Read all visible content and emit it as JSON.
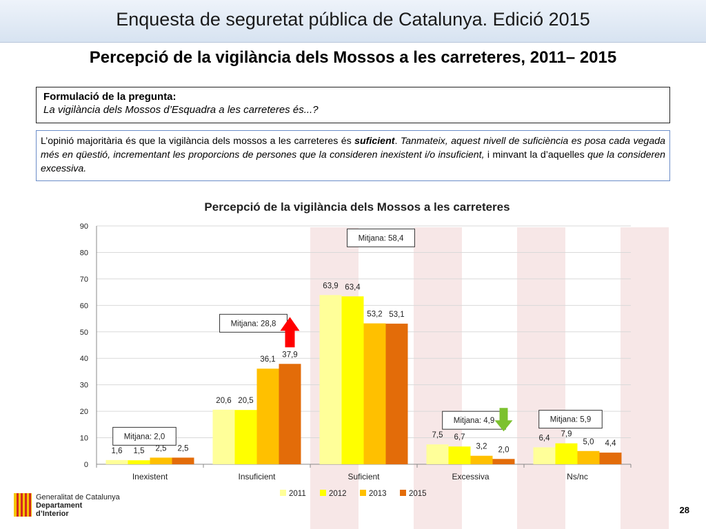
{
  "header": {
    "banner_title": "Enquesta de seguretat pública de Catalunya. Edició 2015",
    "page_title": "Percepció de la vigilància dels Mossos a les carreteres, 2011– 2015"
  },
  "question": {
    "heading": "Formulació de la pregunta:",
    "text": "La vigilància dels Mossos d’Esquadra a les carreteres és...?"
  },
  "summary": {
    "part1": "L’opinió majoritària és que la vigilància dels mossos a les carreteres és ",
    "part2_bold_italic": "suficient",
    "part3": ". ",
    "part4_italic": "Tanmateix, aquest nivell de suficiència es posa cada vegada més en qüestió, incrementant les proporcions de persones que la consideren inexistent i/o insuficient,",
    "part5": " i minvant la d’aquelles ",
    "part6_italic": "que la consideren excessiva."
  },
  "chart_data": {
    "type": "bar",
    "title": "Percepció de la vigilància dels Mossos a les carreteres",
    "categories": [
      "Inexistent",
      "Insuficient",
      "Suficient",
      "Excessiva",
      "Ns/nc"
    ],
    "series": [
      {
        "name": "2011",
        "color": "#ffff99",
        "values": [
          1.6,
          20.6,
          63.9,
          7.5,
          6.4
        ],
        "labels": [
          "1,6",
          "20,6",
          "63,9",
          "7,5",
          "6,4"
        ]
      },
      {
        "name": "2012",
        "color": "#ffff00",
        "values": [
          1.5,
          20.5,
          63.4,
          6.7,
          7.9
        ],
        "labels": [
          "1,5",
          "20,5",
          "63,4",
          "6,7",
          "7,9"
        ]
      },
      {
        "name": "2013",
        "color": "#ffc000",
        "values": [
          2.5,
          36.1,
          53.2,
          3.2,
          5.0
        ],
        "labels": [
          "2,5",
          "36,1",
          "53,2",
          "3,2",
          "5,0"
        ]
      },
      {
        "name": "2015",
        "color": "#e36c09",
        "values": [
          2.5,
          37.9,
          53.1,
          2.0,
          4.4
        ],
        "labels": [
          "2,5",
          "37,9",
          "53,1",
          "2,0",
          "4,4"
        ]
      }
    ],
    "ylim": [
      0,
      90
    ],
    "yticks": [
      0,
      10,
      20,
      30,
      40,
      50,
      60,
      70,
      80,
      90
    ],
    "grid": true,
    "legend_position": "bottom",
    "annotations": [
      {
        "text": "Mitjana: 2,0",
        "category": "Inexistent"
      },
      {
        "text": "Mitjana: 28,8",
        "category": "Insuficient"
      },
      {
        "text": "Mitjana: 58,4",
        "category": "Suficient"
      },
      {
        "text": "Mitjana: 4,9",
        "category": "Excessiva"
      },
      {
        "text": "Mitjana: 5,9",
        "category": "Ns/nc"
      }
    ],
    "trend_arrows": [
      {
        "category": "Insuficient",
        "direction": "up",
        "color": "#ff0000"
      },
      {
        "category": "Excessiva",
        "direction": "down",
        "color": "#7cc12f"
      }
    ]
  },
  "footer": {
    "logo_line1": "Generalitat de Catalunya",
    "logo_line2": "Departament",
    "logo_line3": "d’Interior",
    "page_number": "28"
  },
  "colors": {
    "banner_gradient_top": "#eef3fa",
    "summary_border": "#6a8cc8",
    "logo_red": "#d42a20",
    "logo_yellow": "#f5c400"
  }
}
